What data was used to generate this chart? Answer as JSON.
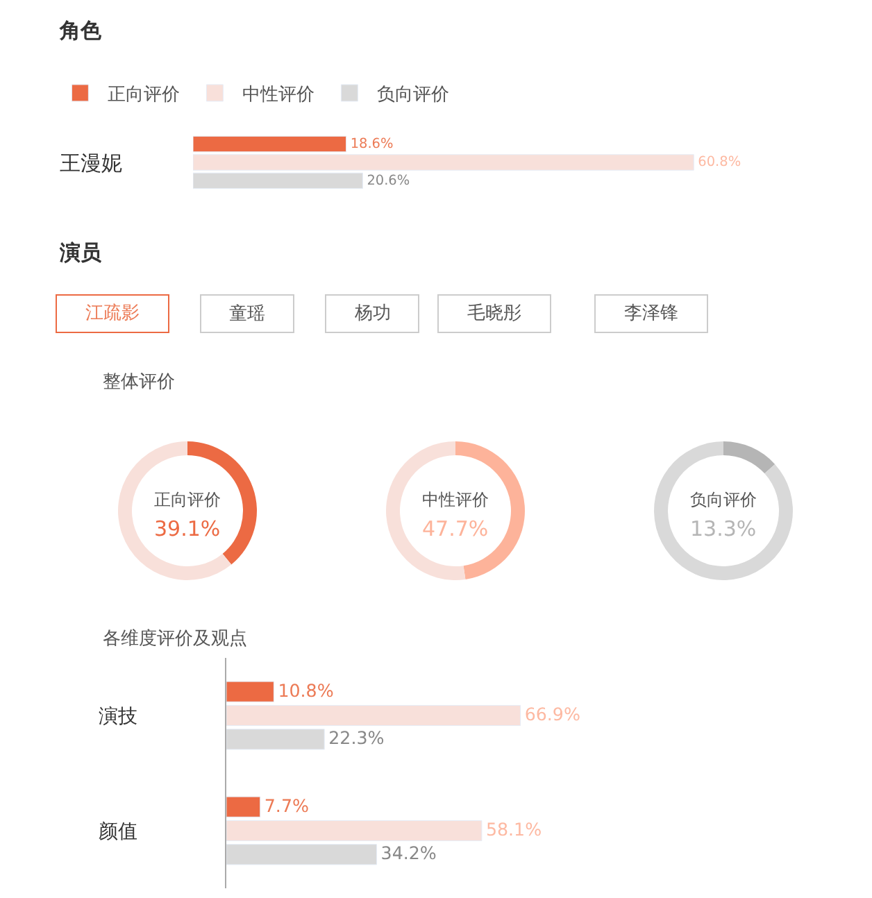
{
  "chart_data": [
    {
      "type": "bar",
      "orientation": "horizontal",
      "title": "角色",
      "tick_labels": "y",
      "legend": "top left",
      "categories": [
        "王漫妮"
      ],
      "series": [
        {
          "name": "正向评价",
          "color": "#ec6a43",
          "values": [
            18.6
          ],
          "value_labels": [
            "18.6%"
          ]
        },
        {
          "name": "中性评价",
          "color": "#f8e0da",
          "values": [
            60.8
          ],
          "value_labels": [
            "60.8%"
          ]
        },
        {
          "name": "负向评价",
          "color": "#d9d9d9",
          "values": [
            20.6
          ],
          "value_labels": [
            "20.6%"
          ]
        }
      ]
    },
    {
      "type": "other",
      "title": "演员",
      "annotations": [
        "江疏影",
        "童瑶",
        "杨功",
        "毛晓彤",
        "李泽锋"
      ]
    },
    {
      "type": "donut",
      "title": "整体评价",
      "categories": [
        "正向评价",
        null
      ],
      "values": [
        39.1,
        60.9
      ],
      "colors": [
        "#ec6a43",
        "#f8e0da"
      ],
      "value_labels": [
        "39.1%",
        null
      ]
    },
    {
      "type": "donut",
      "categories": [
        "中性评价",
        null
      ],
      "values": [
        47.7,
        52.3
      ],
      "colors": [
        "#fdb39a",
        "#f8e0da"
      ],
      "value_labels": [
        "47.7%",
        null
      ]
    },
    {
      "type": "donut",
      "categories": [
        "负向评价",
        null
      ],
      "values": [
        13.3,
        86.7
      ],
      "colors": [
        "#b5b5b5",
        "#d9d9d9"
      ],
      "value_labels": [
        "13.3%",
        null
      ]
    },
    {
      "type": "bar",
      "orientation": "horizontal",
      "title": "各维度评价及观点",
      "tick_labels": "y",
      "categories": [
        "演技",
        "颜值"
      ],
      "series": [
        {
          "color": "#ec6a43",
          "values": [
            10.8,
            7.7
          ],
          "value_labels": [
            "10.8%",
            "7.7%"
          ]
        },
        {
          "color": "#f8e0da",
          "values": [
            66.9,
            58.1
          ],
          "value_labels": [
            "66.9%",
            "58.1%"
          ]
        },
        {
          "color": "#d9d9d9",
          "values": [
            22.3,
            34.2
          ],
          "value_labels": [
            "22.3%",
            "34.2%"
          ]
        }
      ]
    }
  ]
}
